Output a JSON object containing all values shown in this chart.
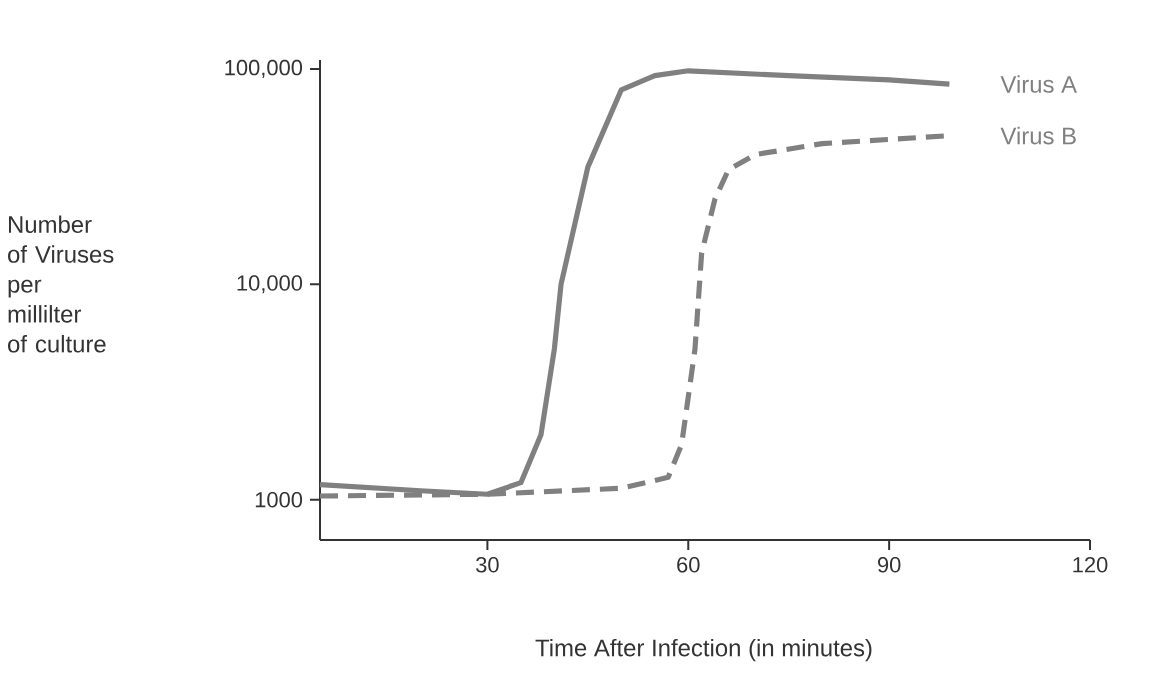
{
  "chart_data": {
    "type": "line",
    "xlabel": "Time After Infection (in minutes)",
    "ylabel": "Number of Viruses per millilter of culture",
    "log": "y",
    "xlim": [
      5,
      120
    ],
    "ylim": [
      650,
      110000
    ],
    "xticks": [
      30,
      60,
      90,
      120
    ],
    "yticks": [
      1000,
      {
        "value": 10000,
        "label": "10,000"
      },
      {
        "value": 100000,
        "label": "100,000"
      }
    ],
    "grid": false,
    "marker": "none",
    "series": [
      {
        "name": "Virus A",
        "color": "#808080",
        "line_style": "solid",
        "x": [
          5,
          20,
          30,
          35,
          38,
          40,
          41,
          45,
          50,
          55,
          60,
          75,
          90,
          99
        ],
        "values": [
          1175,
          1100,
          1060,
          1200,
          2000,
          5000,
          10000,
          35000,
          80000,
          93000,
          98000,
          93000,
          89000,
          85000
        ]
      },
      {
        "name": "Virus B",
        "color": "#808080",
        "line_style": "dashed",
        "x": [
          5,
          30,
          50,
          57,
          59,
          61,
          62,
          64,
          66,
          70,
          80,
          99
        ],
        "values": [
          1040,
          1060,
          1130,
          1270,
          1800,
          5000,
          14000,
          25000,
          34000,
          40000,
          45000,
          49000
        ]
      }
    ]
  }
}
